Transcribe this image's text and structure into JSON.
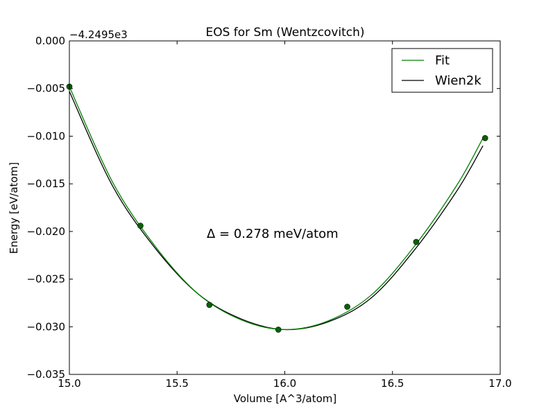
{
  "chart_data": {
    "type": "line",
    "title": "EOS for Sm (Wentzcovitch)",
    "xlabel": "Volume [A^3/atom]",
    "ylabel": "Energy [eV/atom]",
    "offset_label": "−4.2495e3",
    "xlim": [
      15.0,
      17.0
    ],
    "ylim": [
      -0.035,
      0.0
    ],
    "xticks": [
      15.0,
      15.5,
      16.0,
      16.5,
      17.0
    ],
    "xtick_labels": [
      "15.0",
      "15.5",
      "16.0",
      "16.5",
      "17.0"
    ],
    "yticks": [
      0.0,
      -0.005,
      -0.01,
      -0.015,
      -0.02,
      -0.025,
      -0.03,
      -0.035
    ],
    "ytick_labels": [
      "0.000",
      "−0.005",
      "−0.010",
      "−0.015",
      "−0.020",
      "−0.025",
      "−0.030",
      "−0.035"
    ],
    "grid": false,
    "legend_position": "top-right",
    "series": [
      {
        "name": "Fit",
        "color": "#008000",
        "kind": "line",
        "x": [
          15.0,
          15.2,
          15.4,
          15.6,
          15.8,
          16.0,
          16.2,
          16.4,
          16.6,
          16.8,
          16.92
        ],
        "y": [
          -0.0048,
          -0.0148,
          -0.0216,
          -0.0266,
          -0.0293,
          -0.0303,
          -0.0294,
          -0.0267,
          -0.0216,
          -0.0151,
          -0.0102
        ]
      },
      {
        "name": "Wien2k",
        "color": "#000000",
        "kind": "line",
        "x": [
          15.0,
          15.2,
          15.4,
          15.6,
          15.8,
          16.0,
          16.2,
          16.4,
          16.6,
          16.8,
          16.92
        ],
        "y": [
          -0.0053,
          -0.0152,
          -0.0218,
          -0.0266,
          -0.0292,
          -0.0303,
          -0.0295,
          -0.027,
          -0.022,
          -0.0157,
          -0.011
        ]
      },
      {
        "name": "",
        "color": "#006400",
        "kind": "points",
        "x": [
          15.0,
          15.33,
          15.65,
          15.97,
          16.29,
          16.61,
          16.93
        ],
        "y": [
          -0.0048,
          -0.0194,
          -0.0277,
          -0.0303,
          -0.0279,
          -0.0211,
          -0.0102
        ]
      }
    ],
    "annotation": "Δ = 0.278 meV/atom"
  }
}
